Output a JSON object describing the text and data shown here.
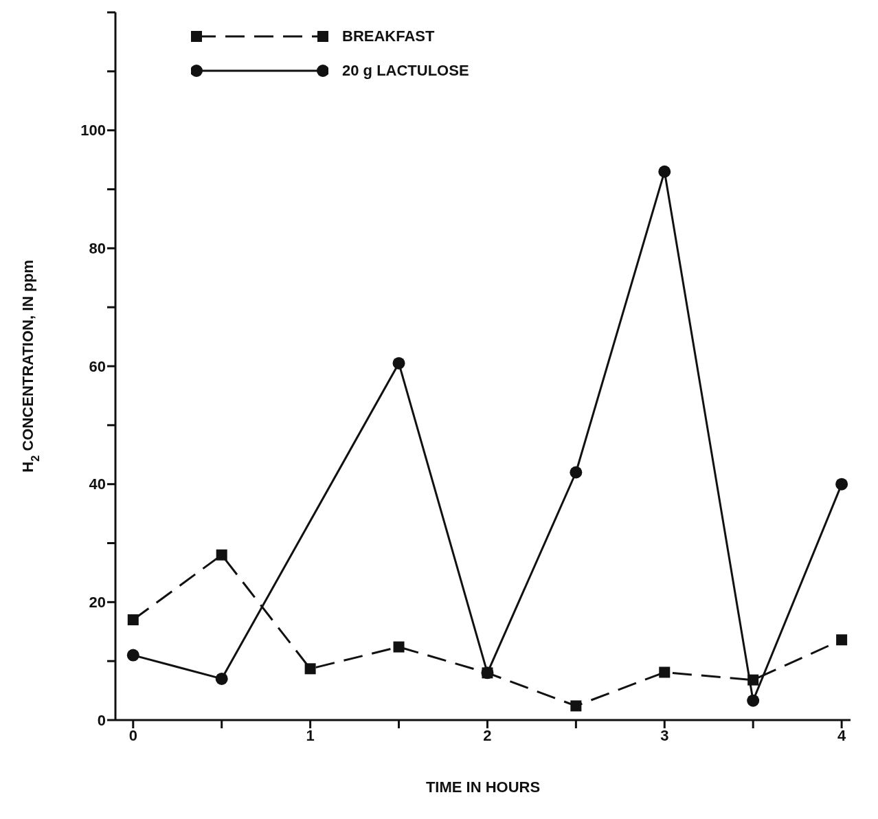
{
  "chart_data": {
    "type": "line",
    "xlabel": "TIME IN HOURS",
    "ylabel": "H$_{2}$ CONCENTRATION, IN ppm",
    "x": [
      0,
      0.5,
      1,
      1.5,
      2,
      2.5,
      3,
      3.5,
      4
    ],
    "series": [
      {
        "name": "BREAKFAST",
        "color": "#111111",
        "marker": "square",
        "line_style": "dashed",
        "values": [
          17,
          28,
          8.7,
          12.4,
          8,
          2.4,
          8.1,
          6.8,
          13.6
        ]
      },
      {
        "name": "20 g LACTULOSE",
        "color": "#111111",
        "marker": "circle",
        "line_style": "solid",
        "values": [
          11,
          7,
          null,
          60.5,
          8,
          42,
          93,
          3.3,
          40
        ]
      }
    ],
    "xlim": [
      -0.1,
      4.05
    ],
    "ylim": [
      0,
      120
    ],
    "xticks": [
      0,
      {
        "value": 0.5,
        "label": null
      },
      1,
      {
        "value": 1.5,
        "label": null
      },
      2,
      {
        "value": 2.5,
        "label": null
      },
      3,
      {
        "value": 3.5,
        "label": null
      },
      4
    ],
    "yticks": [
      0,
      {
        "value": 10,
        "label": null
      },
      20,
      {
        "value": 30,
        "label": null
      },
      40,
      {
        "value": 50,
        "label": null
      },
      60,
      {
        "value": 70,
        "label": null
      },
      80,
      {
        "value": 90,
        "label": null
      },
      100,
      {
        "value": 110,
        "label": null
      },
      {
        "value": 120,
        "label": null
      }
    ],
    "grid": false,
    "legend": "top left"
  }
}
